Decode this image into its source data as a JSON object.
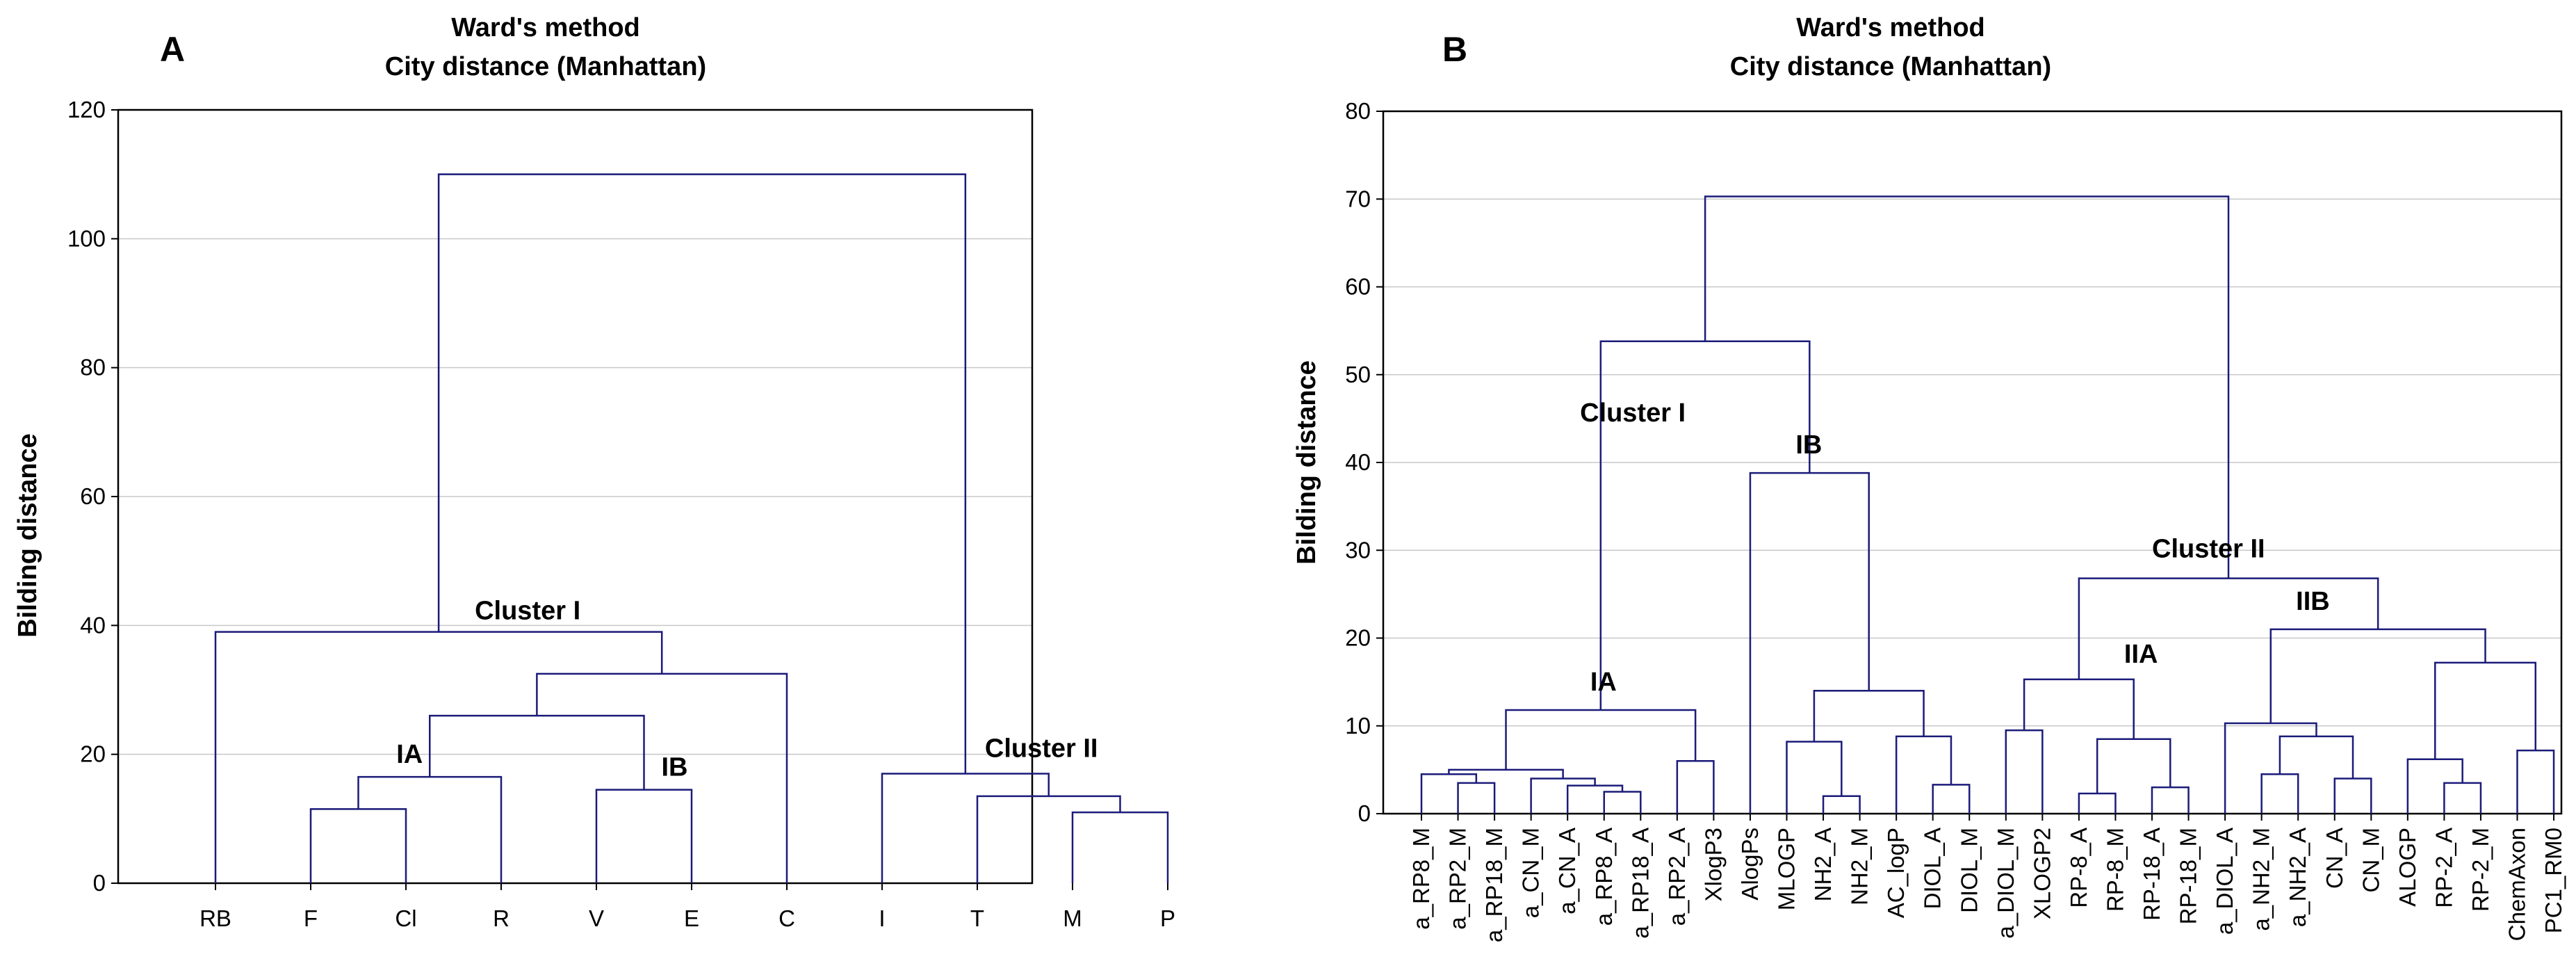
{
  "chart_data": [
    {
      "type": "dendrogram",
      "panel_label": "A",
      "title": "Ward's method",
      "subtitle": "City distance (Manhattan)",
      "xlabel": "",
      "ylabel": "Bilding distance",
      "ylim": [
        0,
        120
      ],
      "yticks": [
        0,
        20,
        40,
        60,
        80,
        100,
        120
      ],
      "grid": true,
      "leaves": [
        "RB",
        "F",
        "Cl",
        "R",
        "V",
        "E",
        "C",
        "I",
        "T",
        "M",
        "P"
      ],
      "merges": [
        {
          "a": "F",
          "b": "Cl",
          "height": 11.5
        },
        {
          "a": 0,
          "b": "R",
          "height": 16.5
        },
        {
          "a": "V",
          "b": "E",
          "height": 14.5
        },
        {
          "a": 1,
          "b": 2,
          "height": 26
        },
        {
          "a": 3,
          "b": "C",
          "height": 32.5
        },
        {
          "a": "RB",
          "b": 4,
          "height": 39
        },
        {
          "a": "M",
          "b": "P",
          "height": 11
        },
        {
          "a": "T",
          "b": 6,
          "height": 13.5
        },
        {
          "a": "I",
          "b": 7,
          "height": 17
        },
        {
          "a": 5,
          "b": 8,
          "height": 110
        }
      ],
      "annotations": [
        {
          "text": "Cluster I",
          "at": 5
        },
        {
          "text": "IA",
          "at": 1
        },
        {
          "text": "IB",
          "at": 2
        },
        {
          "text": "Cluster II",
          "at": 8
        }
      ]
    },
    {
      "type": "dendrogram",
      "panel_label": "B",
      "title": "Ward's method",
      "subtitle": "City distance (Manhattan)",
      "xlabel": "",
      "ylabel": "Bilding distance",
      "ylim": [
        0,
        80
      ],
      "yticks": [
        0,
        10,
        20,
        30,
        40,
        50,
        60,
        70,
        80
      ],
      "grid": true,
      "leaves": [
        "a_RP8_M",
        "a_RP2_M",
        "a_RP18_M",
        "a_CN_M",
        "a_CN_A",
        "a_RP8_A",
        "a_RP18_A",
        "a_RP2_A",
        "XlogP3",
        "AlogPs",
        "MLOGP",
        "NH2_A",
        "NH2_M",
        "AC_logP",
        "DIOL_A",
        "DIOL_M",
        "a_DIOL_M",
        "XLOGP2",
        "RP-8_A",
        "RP-8_M",
        "RP-18_A",
        "RP-18_M",
        "a_DIOL_A",
        "a_NH2_M",
        "a_NH2_A",
        "CN_A",
        "CN_M",
        "ALOGP",
        "RP-2_A",
        "RP-2_M",
        "ChemAxon",
        "PC1_RM0"
      ],
      "merges": [
        {
          "a": "a_RP2_M",
          "b": "a_RP18_M",
          "height": 3.5
        },
        {
          "a": "a_RP8_M",
          "b": 0,
          "height": 4.5
        },
        {
          "a": "a_RP8_A",
          "b": "a_RP18_A",
          "height": 2.5
        },
        {
          "a": "a_CN_A",
          "b": 2,
          "height": 3.2
        },
        {
          "a": "a_CN_M",
          "b": 3,
          "height": 4
        },
        {
          "a": 1,
          "b": 4,
          "height": 5
        },
        {
          "a": "a_RP2_A",
          "b": "XlogP3",
          "height": 6
        },
        {
          "a": 5,
          "b": 6,
          "height": 11.8
        },
        {
          "a": "NH2_A",
          "b": "NH2_M",
          "height": 2
        },
        {
          "a": "MLOGP",
          "b": 8,
          "height": 8.2
        },
        {
          "a": "DIOL_A",
          "b": "DIOL_M",
          "height": 3.3
        },
        {
          "a": "AC_logP",
          "b": 10,
          "height": 8.8
        },
        {
          "a": 9,
          "b": 11,
          "height": 14
        },
        {
          "a": "AlogPs",
          "b": 12,
          "height": 38.8
        },
        {
          "a": 7,
          "b": 13,
          "height": 53.8
        },
        {
          "a": "a_DIOL_M",
          "b": "XLOGP2",
          "height": 9.5
        },
        {
          "a": "RP-8_A",
          "b": "RP-8_M",
          "height": 2.3
        },
        {
          "a": "RP-18_A",
          "b": "RP-18_M",
          "height": 3
        },
        {
          "a": 16,
          "b": 17,
          "height": 8.5
        },
        {
          "a": 15,
          "b": 18,
          "height": 15.3
        },
        {
          "a": "a_NH2_M",
          "b": "a_NH2_A",
          "height": 4.5
        },
        {
          "a": "CN_A",
          "b": "CN_M",
          "height": 4
        },
        {
          "a": 20,
          "b": 21,
          "height": 8.8
        },
        {
          "a": "a_DIOL_A",
          "b": 22,
          "height": 10.3
        },
        {
          "a": "RP-2_A",
          "b": "RP-2_M",
          "height": 3.5
        },
        {
          "a": "ALOGP",
          "b": 24,
          "height": 6.2
        },
        {
          "a": "ChemAxon",
          "b": "PC1_RM0",
          "height": 7.2
        },
        {
          "a": 25,
          "b": 26,
          "height": 17.2
        },
        {
          "a": 23,
          "b": 27,
          "height": 21
        },
        {
          "a": 19,
          "b": 28,
          "height": 26.8
        },
        {
          "a": 14,
          "b": 29,
          "height": 70.3
        }
      ],
      "annotations": [
        {
          "text": "Cluster I",
          "at": 14
        },
        {
          "text": "IA",
          "at": 7
        },
        {
          "text": "IB",
          "at": 13
        },
        {
          "text": "Cluster II",
          "at": 29
        },
        {
          "text": "IIA",
          "at": 19
        },
        {
          "text": "IIB",
          "at": 28
        }
      ]
    }
  ]
}
